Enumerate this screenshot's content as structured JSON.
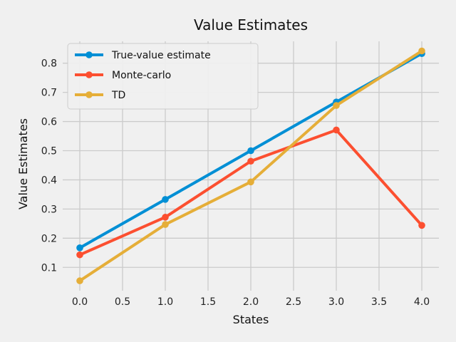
{
  "chart_data": {
    "type": "line",
    "title": "Value Estimates",
    "xlabel": "States",
    "ylabel": "Value Estimates",
    "x": [
      0,
      1,
      2,
      3,
      4
    ],
    "xlim": [
      -0.2,
      4.2
    ],
    "ylim": [
      0.02,
      0.875
    ],
    "xticks": [
      "0.0",
      "0.5",
      "1.0",
      "1.5",
      "2.0",
      "2.5",
      "3.0",
      "3.5",
      "4.0"
    ],
    "yticks": [
      "0.1",
      "0.2",
      "0.3",
      "0.4",
      "0.5",
      "0.6",
      "0.7",
      "0.8"
    ],
    "grid": true,
    "legend_position": "upper-left",
    "series": [
      {
        "name": "True-value estimate",
        "color": "#008fd5",
        "values": [
          0.167,
          0.333,
          0.5,
          0.667,
          0.833
        ]
      },
      {
        "name": "Monte-carlo",
        "color": "#fc4f30",
        "values": [
          0.143,
          0.272,
          0.464,
          0.571,
          0.244
        ]
      },
      {
        "name": "TD",
        "color": "#e5ae38",
        "values": [
          0.054,
          0.247,
          0.393,
          0.655,
          0.842
        ]
      }
    ]
  }
}
